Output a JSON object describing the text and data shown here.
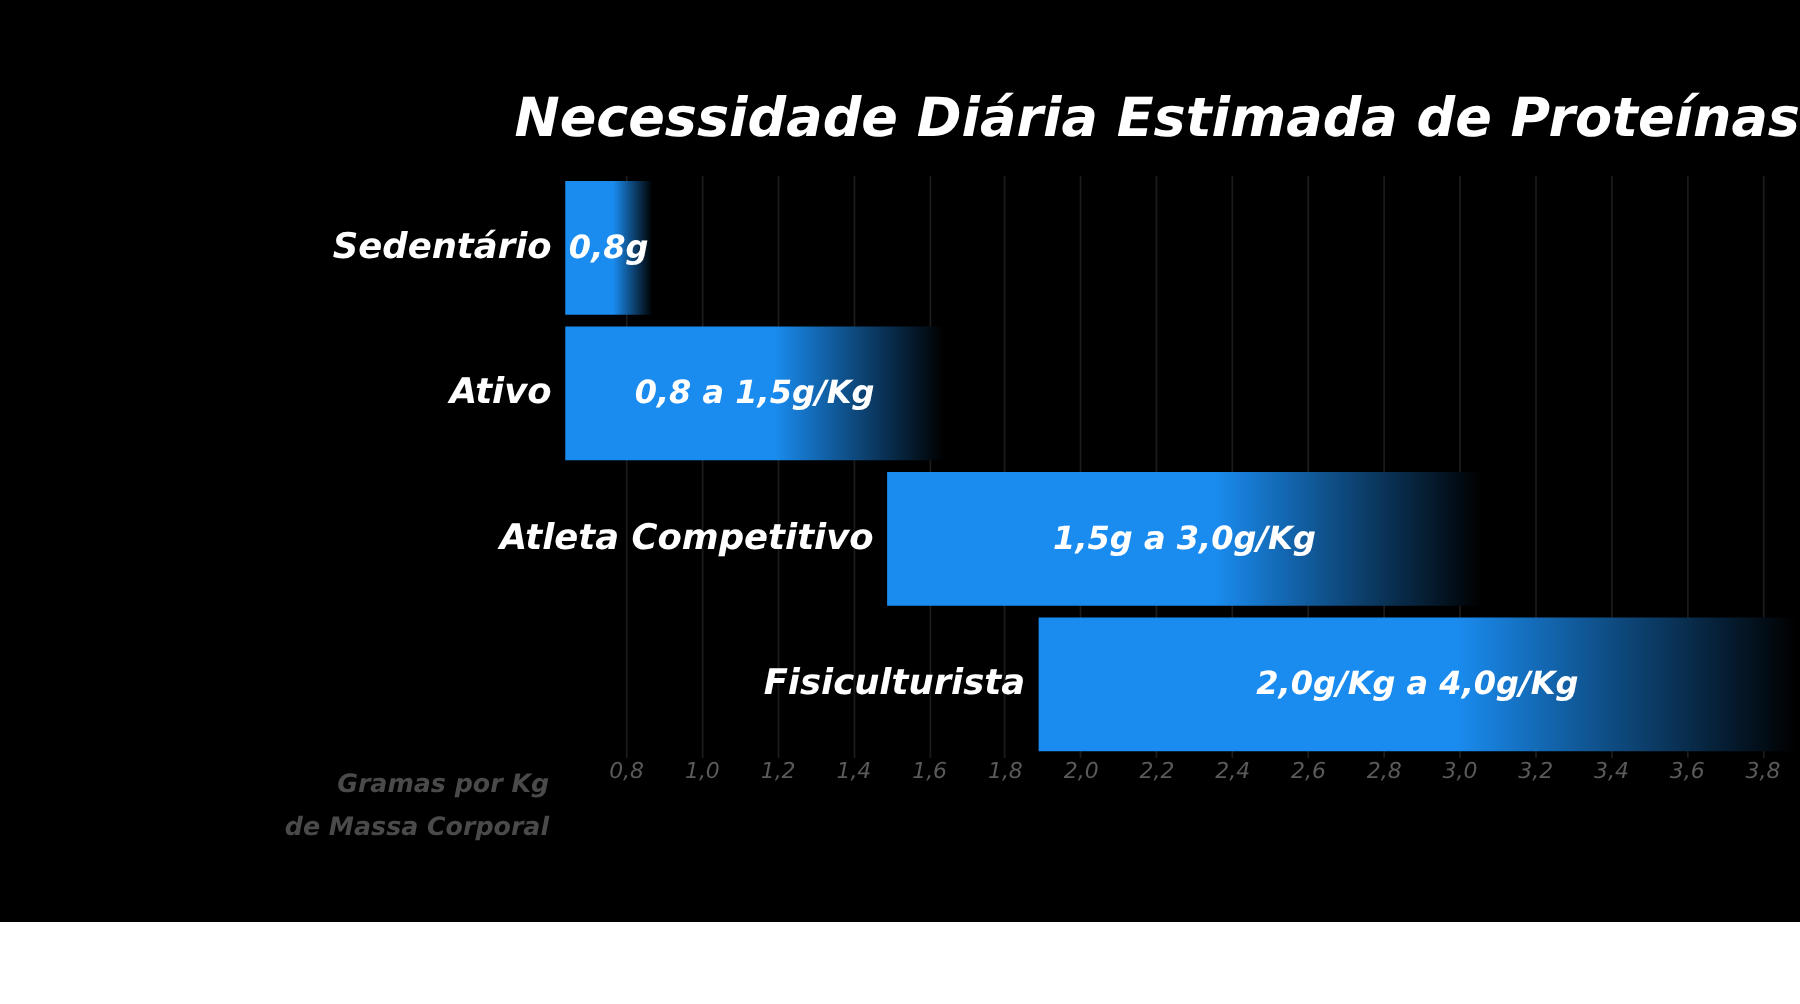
{
  "chart_data": {
    "type": "bar",
    "orientation": "horizontal",
    "title": "Necessidade Diária Estimada de Proteínas",
    "xlabel": "Gramas por Kg de Massa Corporal",
    "categories": [
      "Sedentário",
      "Ativo",
      "Atleta Competitivo",
      "Fisiculturista"
    ],
    "base": [
      0.64,
      0.64,
      1.49,
      1.89
    ],
    "values": [
      0.23,
      1.0,
      1.57,
      2.0
    ],
    "annotations": [
      {
        "text": "0,8g",
        "x": 0.755,
        "y": "Sedentário"
      },
      {
        "text": "0,8 a 1,5g/Kg",
        "x": 1.14,
        "y": "Ativo"
      },
      {
        "text": "1,5g a 3,0g/Kg",
        "x": 2.275,
        "y": "Atleta Competitivo"
      },
      {
        "text": "2,0g/Kg a 4,0g/Kg",
        "x": 2.89,
        "y": "Fisiculturista"
      }
    ],
    "color": "#1a8cf0",
    "xlim": [
      0.64,
      3.9
    ],
    "xticks": [
      {
        "value": 0.8,
        "label": "0,8"
      },
      {
        "value": 1.0,
        "label": "1,0"
      },
      {
        "value": 1.2,
        "label": "1,2"
      },
      {
        "value": 1.4,
        "label": "1,4"
      },
      {
        "value": 1.6,
        "label": "1,6"
      },
      {
        "value": 1.8,
        "label": "1,8"
      },
      {
        "value": 2.0,
        "label": "2,0"
      },
      {
        "value": 2.2,
        "label": "2,2"
      },
      {
        "value": 2.4,
        "label": "2,4"
      },
      {
        "value": 2.6,
        "label": "2,6"
      },
      {
        "value": 2.8,
        "label": "2,8"
      },
      {
        "value": 3.0,
        "label": "3,0"
      },
      {
        "value": 3.2,
        "label": "3,2"
      },
      {
        "value": 3.4,
        "label": "3,4"
      },
      {
        "value": 3.6,
        "label": "3,6"
      },
      {
        "value": 3.8,
        "label": "3,8"
      }
    ],
    "grid": "x"
  }
}
